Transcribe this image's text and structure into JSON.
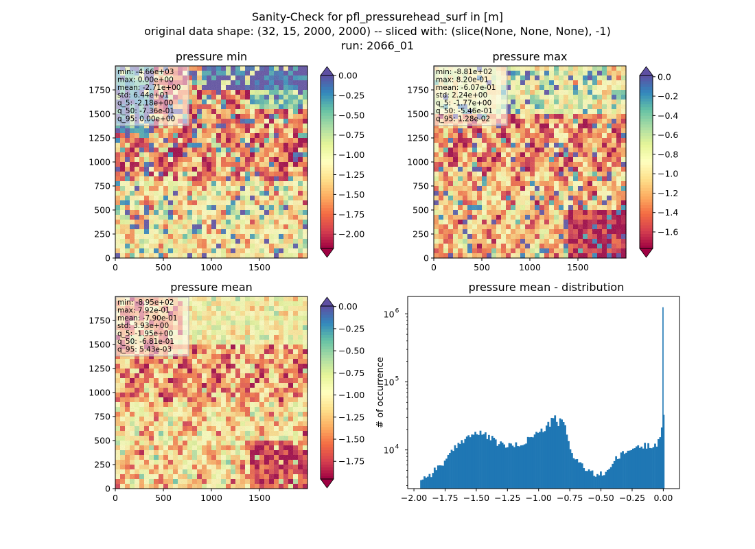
{
  "figure": {
    "title_lines": [
      "Sanity-Check for pfl_pressurehead_surf in [m]",
      "original data shape: (32, 15, 2000, 2000) -- sliced with: (slice(None, None, None), -1)",
      "run: 2066_01"
    ]
  },
  "colors": {
    "spectral": [
      "#9e0142",
      "#d53e4f",
      "#f46d43",
      "#fdae61",
      "#fee08b",
      "#ffffbf",
      "#e6f598",
      "#abdda4",
      "#66c2a5",
      "#3288bd",
      "#5e4fa2"
    ],
    "hist_bar": "#1f77b4",
    "text": "#000000",
    "stats_box_fill": "#ffffff",
    "stats_box_edge": "#b0b0b0"
  },
  "panels": [
    {
      "title": "pressure min",
      "stats": [
        "min: -4.66e+03",
        "max: 0.00e+00",
        "mean: -2.71e+00",
        "std: 6.44e+01",
        "q_5: -2.18e+00",
        "q_50: -7.36e-01",
        "q_95: 0.00e+00"
      ],
      "x_ticks": [
        "0",
        "500",
        "1000",
        "1500"
      ],
      "y_ticks": [
        "0",
        "250",
        "500",
        "750",
        "1000",
        "1250",
        "1500",
        "1750"
      ],
      "colorbar": {
        "range": [
          -2.18,
          0.0
        ],
        "ticks": [
          "0.00",
          "−0.25",
          "−0.50",
          "−0.75",
          "−1.00",
          "−1.25",
          "−1.50",
          "−1.75",
          "−2.00"
        ],
        "tick_values": [
          0,
          -0.25,
          -0.5,
          -0.75,
          -1.0,
          -1.25,
          -1.5,
          -1.75,
          -2.0
        ],
        "extend": "both"
      },
      "field": "min"
    },
    {
      "title": "pressure max",
      "stats": [
        "min: -8.81e+02",
        "max: 8.20e-01",
        "mean: -6.07e-01",
        "std: 2.24e+00",
        "q_5: -1.77e+00",
        "q_50: -5.46e-01",
        "q_95: 1.28e-02"
      ],
      "x_ticks": [
        "0",
        "500",
        "1000",
        "1500"
      ],
      "y_ticks": [
        "0",
        "250",
        "500",
        "750",
        "1000",
        "1250",
        "1500",
        "1750"
      ],
      "colorbar": {
        "range": [
          -1.77,
          0.0128
        ],
        "ticks": [
          "0.0",
          "−0.2",
          "−0.4",
          "−0.6",
          "−0.8",
          "−1.0",
          "−1.2",
          "−1.4",
          "−1.6"
        ],
        "tick_values": [
          0,
          -0.2,
          -0.4,
          -0.6,
          -0.8,
          -1.0,
          -1.2,
          -1.4,
          -1.6
        ],
        "extend": "both"
      },
      "field": "max"
    },
    {
      "title": "pressure mean",
      "stats": [
        "min: -8.95e+02",
        "max: 7.92e-01",
        "mean: -7.90e-01",
        "std: 3.93e+00",
        "q_5: -1.95e+00",
        "q_50: -6.81e-01",
        "q_95: 5.43e-03"
      ],
      "x_ticks": [
        "0",
        "500",
        "1000",
        "1500"
      ],
      "y_ticks": [
        "0",
        "250",
        "500",
        "750",
        "1000",
        "1250",
        "1500",
        "1750"
      ],
      "colorbar": {
        "range": [
          -1.95,
          0.00543
        ],
        "ticks": [
          "0.00",
          "−0.25",
          "−0.50",
          "−0.75",
          "−1.00",
          "−1.25",
          "−1.50",
          "−1.75"
        ],
        "tick_values": [
          0,
          -0.25,
          -0.5,
          -0.75,
          -1.0,
          -1.25,
          -1.5,
          -1.75
        ],
        "extend": "both"
      },
      "field": "mean"
    }
  ],
  "chart_data": [
    {
      "type": "heatmap",
      "title": "pressure min",
      "xlim": [
        0,
        2000
      ],
      "ylim": [
        0,
        2000
      ],
      "color_range": [
        -2.18,
        0.0
      ],
      "colormap": "Spectral"
    },
    {
      "type": "heatmap",
      "title": "pressure max",
      "xlim": [
        0,
        2000
      ],
      "ylim": [
        0,
        2000
      ],
      "color_range": [
        -1.77,
        0.0128
      ],
      "colormap": "Spectral"
    },
    {
      "type": "heatmap",
      "title": "pressure mean",
      "xlim": [
        0,
        2000
      ],
      "ylim": [
        0,
        2000
      ],
      "color_range": [
        -1.95,
        0.00543
      ],
      "colormap": "Spectral"
    },
    {
      "type": "bar",
      "title": "pressure mean - distribution",
      "xlabel": "",
      "ylabel": "# of occurrence",
      "yscale": "log",
      "xlim": [
        -2.05,
        0.13
      ],
      "ylim": [
        2700,
        1800000
      ],
      "x_ticks": [
        "−2.00",
        "−1.75",
        "−1.50",
        "−1.25",
        "−1.00",
        "−0.75",
        "−0.50",
        "−0.25",
        "0.00"
      ],
      "x_tick_values": [
        -2.0,
        -1.75,
        -1.5,
        -1.25,
        -1.0,
        -0.75,
        -0.5,
        -0.25,
        0.0
      ],
      "y_ticks": [
        {
          "base": "10",
          "exp": "4",
          "value": 10000
        },
        {
          "base": "10",
          "exp": "5",
          "value": 100000
        },
        {
          "base": "10",
          "exp": "6",
          "value": 1000000
        }
      ],
      "x_anchors": [
        -1.95,
        -1.88,
        -1.82,
        -1.75,
        -1.68,
        -1.6,
        -1.52,
        -1.45,
        -1.4,
        -1.35,
        -1.3,
        -1.25,
        -1.2,
        -1.15,
        -1.1,
        -1.05,
        -1.0,
        -0.95,
        -0.9,
        -0.87,
        -0.85,
        -0.83,
        -0.8,
        -0.77,
        -0.74,
        -0.7,
        -0.66,
        -0.62,
        -0.58,
        -0.54,
        -0.5,
        -0.46,
        -0.42,
        -0.38,
        -0.3,
        -0.22,
        -0.15,
        -0.1,
        -0.06,
        -0.03,
        -0.015,
        -0.005
      ],
      "y_anchors": [
        3800,
        4300,
        5500,
        7000,
        10500,
        15000,
        17500,
        17000,
        15500,
        13000,
        12000,
        11500,
        11500,
        12000,
        14000,
        16500,
        18000,
        21000,
        27000,
        30000,
        23000,
        28000,
        24000,
        14000,
        9000,
        7200,
        6000,
        5000,
        4500,
        4300,
        4400,
        5000,
        6000,
        7500,
        9500,
        11000,
        11500,
        12000,
        12500,
        16000,
        22000,
        30000
      ],
      "spike": {
        "x": 0.0,
        "y": 1250000
      },
      "bin_width": 0.0136
    }
  ]
}
